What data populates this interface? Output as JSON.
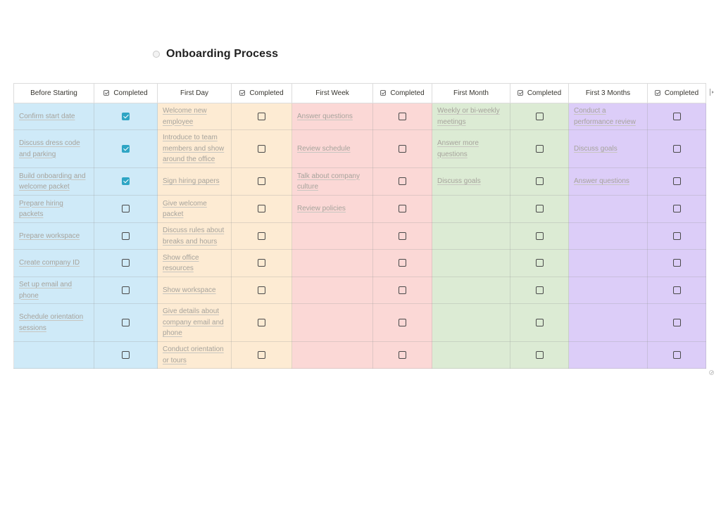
{
  "page": {
    "title": "Onboarding Process",
    "icon": "circle-page-icon"
  },
  "table": {
    "columns": [
      {
        "name": "Before Starting",
        "completed_label": "Completed",
        "color": "#cfeaf8"
      },
      {
        "name": "First Day",
        "completed_label": "Completed",
        "color": "#fdebd3"
      },
      {
        "name": "First Week",
        "completed_label": "Completed",
        "color": "#fbd8d6"
      },
      {
        "name": "First Month",
        "completed_label": "Completed",
        "color": "#dcebd4"
      },
      {
        "name": "First 3 Months",
        "completed_label": "Completed",
        "color": "#dccdf8"
      }
    ],
    "checkbox_color": "#2ea5c4",
    "rows": [
      {
        "cells": [
          {
            "task": "Confirm start date",
            "done": true
          },
          {
            "task": "Welcome new employee",
            "done": false
          },
          {
            "task": "Answer questions",
            "done": false
          },
          {
            "task": "Weekly or bi-weekly meetings",
            "done": false
          },
          {
            "task": "Conduct a performance review",
            "done": false
          }
        ]
      },
      {
        "cells": [
          {
            "task": "Discuss dress code and parking",
            "done": true
          },
          {
            "task": "Introduce to team members and show around the office",
            "done": false
          },
          {
            "task": "Review schedule",
            "done": false
          },
          {
            "task": "Answer more questions",
            "done": false
          },
          {
            "task": "Discuss goals",
            "done": false
          }
        ]
      },
      {
        "cells": [
          {
            "task": "Build onboarding and welcome packet",
            "done": true
          },
          {
            "task": "Sign hiring papers",
            "done": false
          },
          {
            "task": "Talk about company culture",
            "done": false
          },
          {
            "task": "Discuss goals",
            "done": false
          },
          {
            "task": "Answer questions",
            "done": false
          }
        ]
      },
      {
        "cells": [
          {
            "task": "Prepare hiring packets",
            "done": false
          },
          {
            "task": "Give welcome packet",
            "done": false
          },
          {
            "task": "Review policies",
            "done": false
          },
          {
            "task": "",
            "done": false
          },
          {
            "task": "",
            "done": false
          }
        ]
      },
      {
        "cells": [
          {
            "task": "Prepare workspace",
            "done": false
          },
          {
            "task": "Discuss rules about breaks and hours",
            "done": false
          },
          {
            "task": "",
            "done": false
          },
          {
            "task": "",
            "done": false
          },
          {
            "task": "",
            "done": false
          }
        ]
      },
      {
        "cells": [
          {
            "task": "Create company ID",
            "done": false
          },
          {
            "task": "Show office resources",
            "done": false
          },
          {
            "task": "",
            "done": false
          },
          {
            "task": "",
            "done": false
          },
          {
            "task": "",
            "done": false
          }
        ]
      },
      {
        "cells": [
          {
            "task": "Set up email and phone",
            "done": false
          },
          {
            "task": "Show workspace",
            "done": false
          },
          {
            "task": "",
            "done": false
          },
          {
            "task": "",
            "done": false
          },
          {
            "task": "",
            "done": false
          }
        ]
      },
      {
        "cells": [
          {
            "task": "Schedule orientation sessions",
            "done": false
          },
          {
            "task": "Give details about company email and phone",
            "done": false
          },
          {
            "task": "",
            "done": false
          },
          {
            "task": "",
            "done": false
          },
          {
            "task": "",
            "done": false
          }
        ]
      },
      {
        "cells": [
          {
            "task": "",
            "done": false
          },
          {
            "task": "Conduct orientation or tours",
            "done": false
          },
          {
            "task": "",
            "done": false
          },
          {
            "task": "",
            "done": false
          },
          {
            "task": "",
            "done": false
          }
        ]
      }
    ]
  }
}
